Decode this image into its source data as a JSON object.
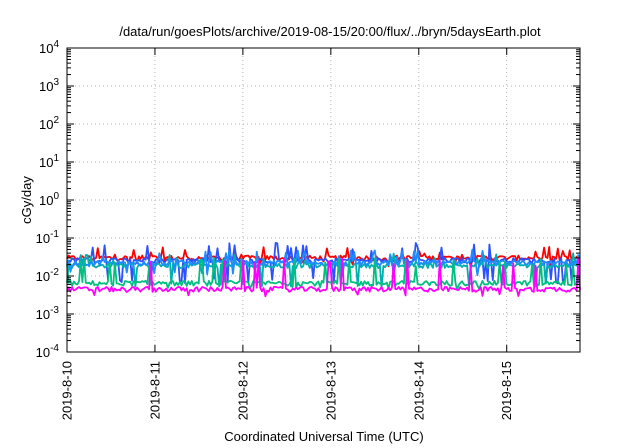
{
  "chart_data": {
    "type": "line",
    "title": "/data/run/goesPlots/archive/2019-08-15/20:00/flux/../bryn/5daysEarth.plot",
    "xlabel": "Coordinated Universal Time (UTC)",
    "ylabel": "cGy/day",
    "yscale": "log",
    "ylim": [
      0.0001,
      10000
    ],
    "xlim": [
      "2019-08-10",
      "2019-08-15 20:00"
    ],
    "grid": true,
    "x_ticks": [
      "2019-8-10",
      "2019-8-11",
      "2019-8-12",
      "2019-8-13",
      "2019-8-14",
      "2019-8-15"
    ],
    "y_ticks": [
      {
        "base": "10",
        "exp": "-4"
      },
      {
        "base": "10",
        "exp": "-3"
      },
      {
        "base": "10",
        "exp": "-2"
      },
      {
        "base": "10",
        "exp": "-1"
      },
      {
        "base": "10",
        "exp": "0"
      },
      {
        "base": "10",
        "exp": "1"
      },
      {
        "base": "10",
        "exp": "2"
      },
      {
        "base": "10",
        "exp": "3"
      },
      {
        "base": "10",
        "exp": "4"
      }
    ],
    "series": [
      {
        "color": "#ff0000",
        "baseline": 0.03,
        "spike": 0.06,
        "dip": 0.022
      },
      {
        "color": "#2a52ff",
        "baseline": 0.026,
        "spike": 0.075,
        "dip": 0.008
      },
      {
        "color": "#00b0b0",
        "baseline": 0.019,
        "spike": 0.04,
        "dip": 0.006
      },
      {
        "color": "#1e8cff",
        "baseline": 0.022,
        "spike": 0.05,
        "dip": 0.012
      },
      {
        "color": "#00c080",
        "baseline": 0.0065,
        "spike": 0.03,
        "dip": 0.0055
      },
      {
        "color": "#ff00ff",
        "baseline": 0.0045,
        "spike": 0.03,
        "dip": 0.0035
      }
    ]
  }
}
